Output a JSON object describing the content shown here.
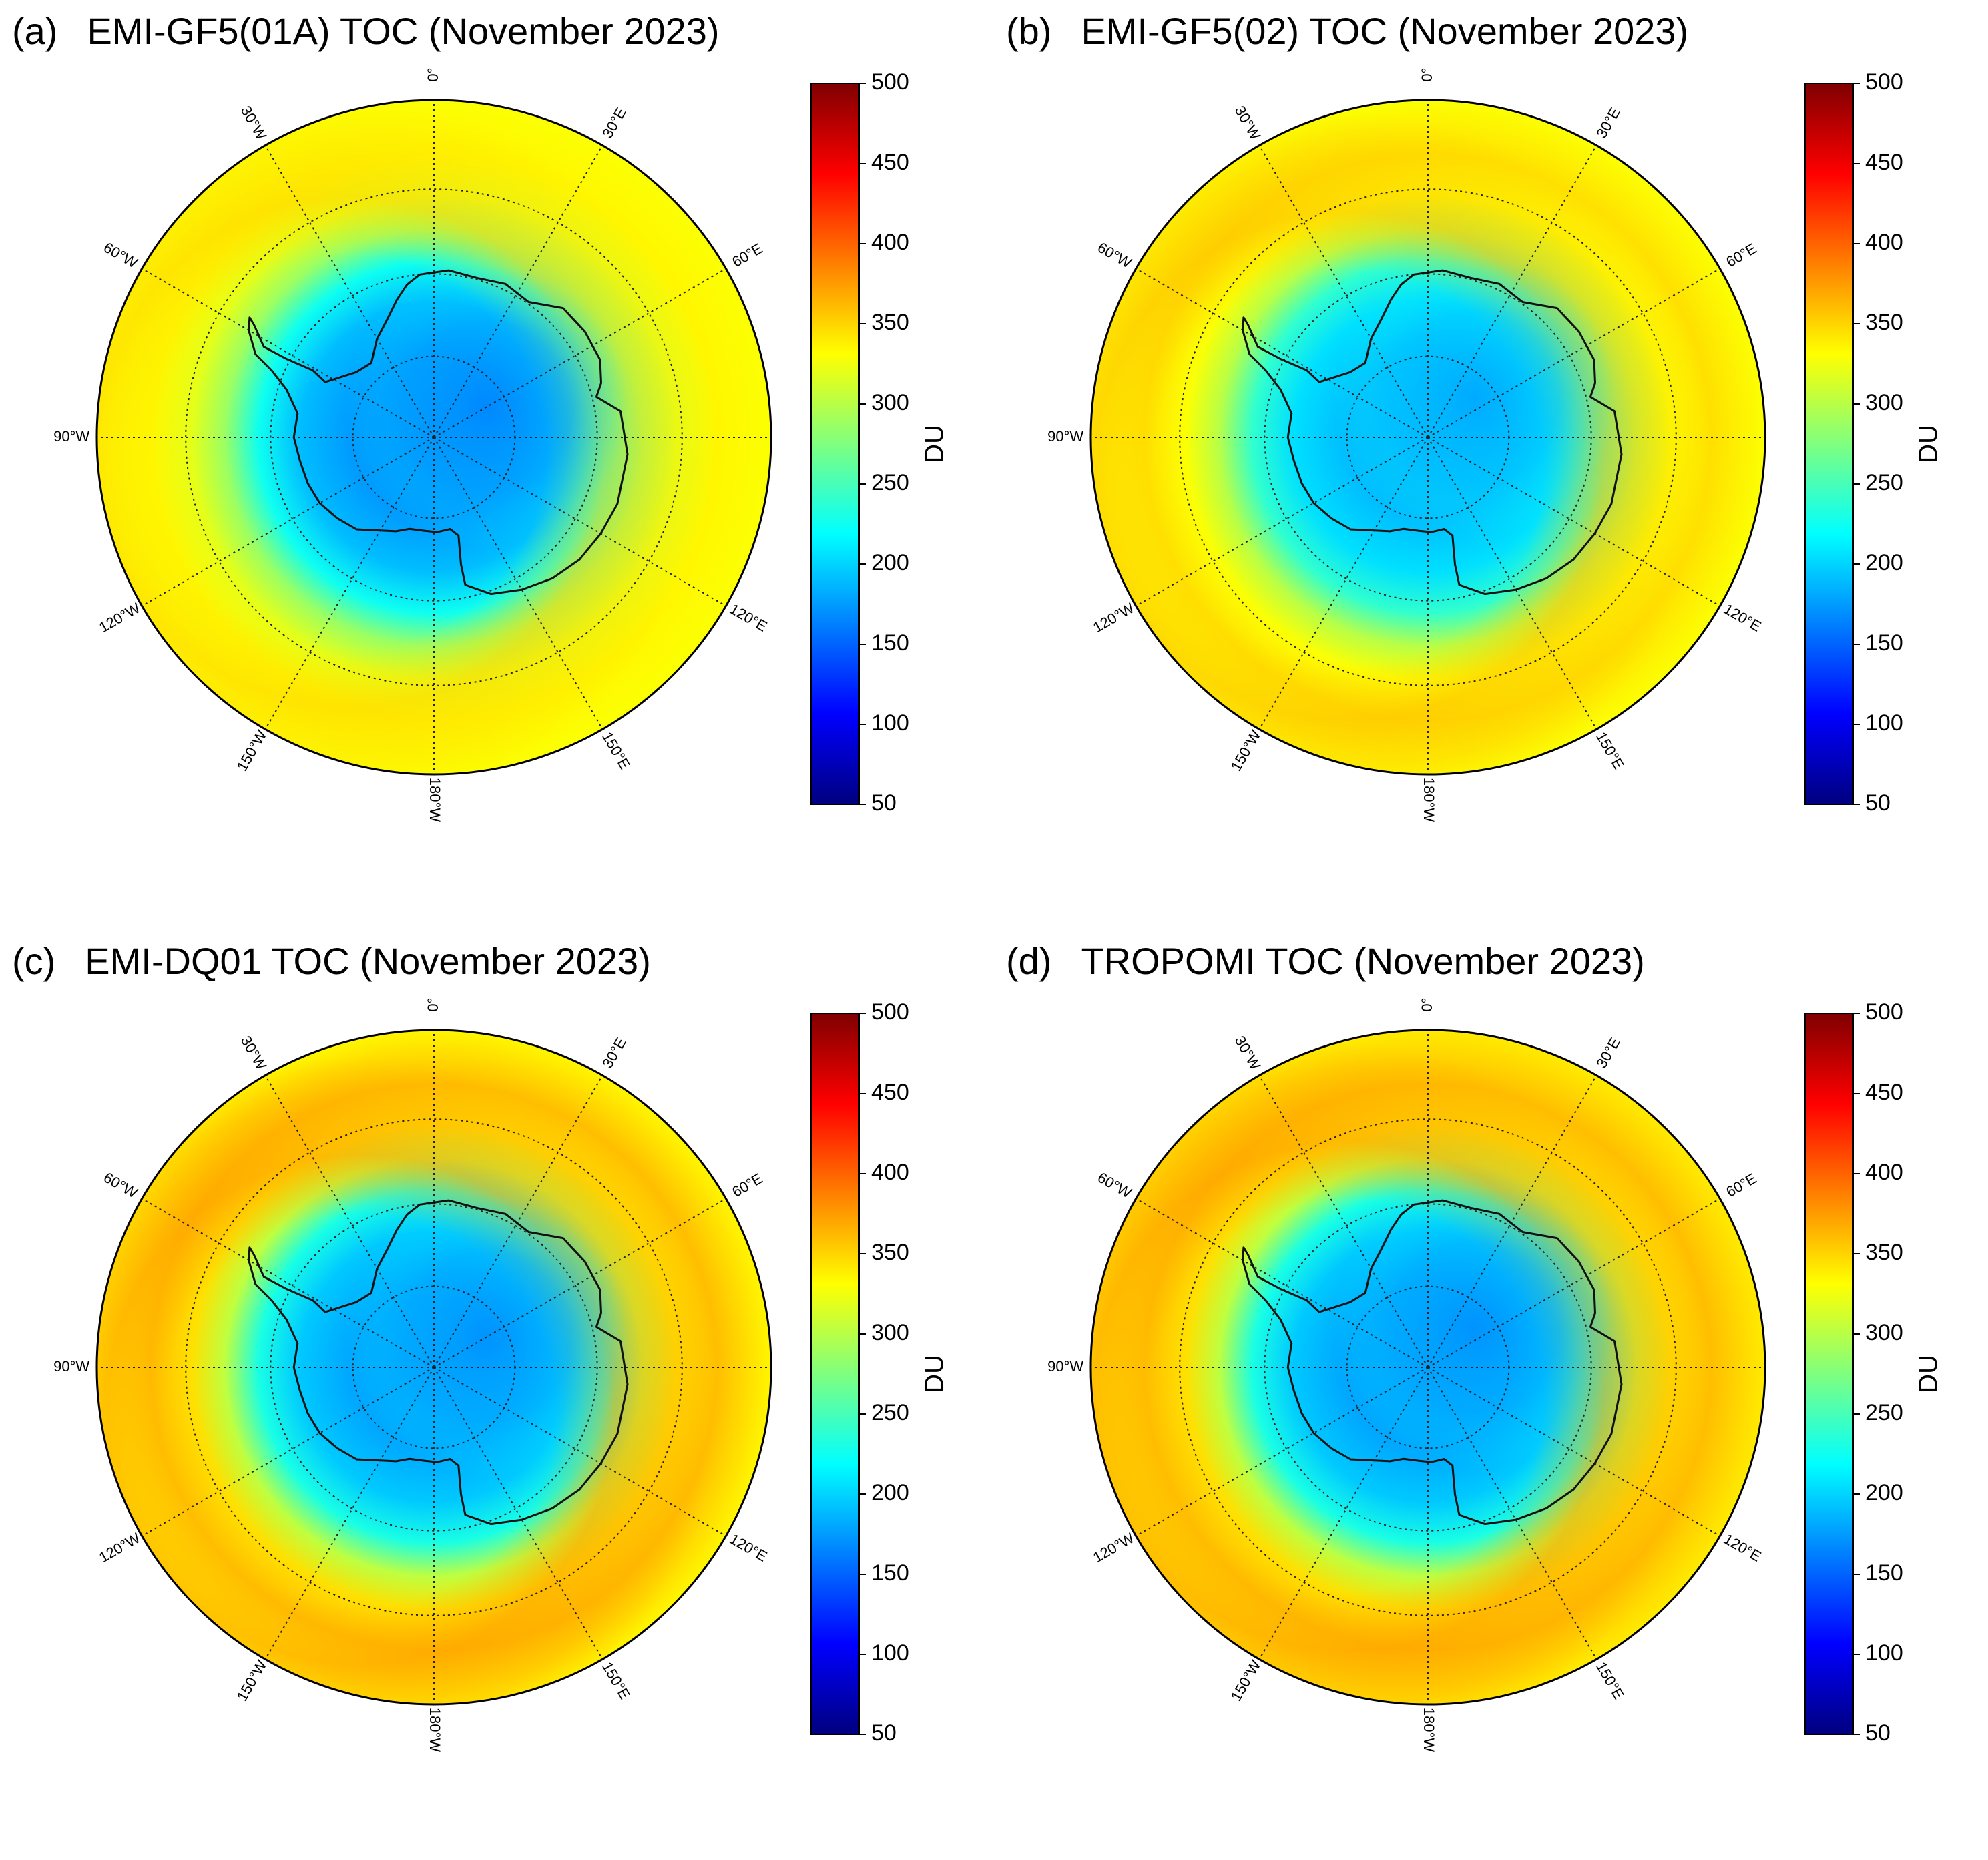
{
  "figure": {
    "panels": [
      {
        "id": "a",
        "tag": "(a)",
        "title": "EMI-GF5(01A)  TOC (November 2023)",
        "min_toc_du": 170,
        "ring_peak_du": 345,
        "ring_peak_lon": -100,
        "outer_edge_du": 330,
        "low_center_lon": 60
      },
      {
        "id": "b",
        "tag": "(b)",
        "title": "EMI-GF5(02)  TOC (November 2023)",
        "min_toc_du": 185,
        "ring_peak_du": 355,
        "ring_peak_lon": -110,
        "outer_edge_du": 330,
        "low_center_lon": 50
      },
      {
        "id": "c",
        "tag": "(c)",
        "title": "EMI-DQ01  TOC (November 2023)",
        "min_toc_du": 175,
        "ring_peak_du": 370,
        "ring_peak_lon": -120,
        "outer_edge_du": 335,
        "low_center_lon": 60
      },
      {
        "id": "d",
        "tag": "(d)",
        "title": "TROPOMI  TOC (November 2023)",
        "min_toc_du": 175,
        "ring_peak_du": 370,
        "ring_peak_lon": -110,
        "outer_edge_du": 340,
        "low_center_lon": 50
      }
    ],
    "colorbar": {
      "label": "DU",
      "min": 50,
      "max": 500,
      "ticks": [
        "500",
        "450",
        "400",
        "350",
        "300",
        "250",
        "200",
        "150",
        "100",
        "50"
      ],
      "colors": [
        "#00007f",
        "#0000ff",
        "#007fff",
        "#00ffff",
        "#7fff7f",
        "#ffff00",
        "#ff7f00",
        "#ff0000",
        "#7f0000"
      ]
    },
    "meridian_labels": [
      {
        "text": "0°",
        "lon": 0
      },
      {
        "text": "30°E",
        "lon": 30
      },
      {
        "text": "60°E",
        "lon": 60
      },
      {
        "text": "120°E",
        "lon": 120
      },
      {
        "text": "150°E",
        "lon": 150
      },
      {
        "text": "180°W",
        "lon": 180
      },
      {
        "text": "150°W",
        "lon": -150
      },
      {
        "text": "120°W",
        "lon": -120
      },
      {
        "text": "90°W",
        "lon": -90
      },
      {
        "text": "60°W",
        "lon": -60
      },
      {
        "text": "30°W",
        "lon": -30
      }
    ],
    "latitude_circles": [
      -80,
      -70,
      -60
    ],
    "map_extent_lat": -50
  }
}
